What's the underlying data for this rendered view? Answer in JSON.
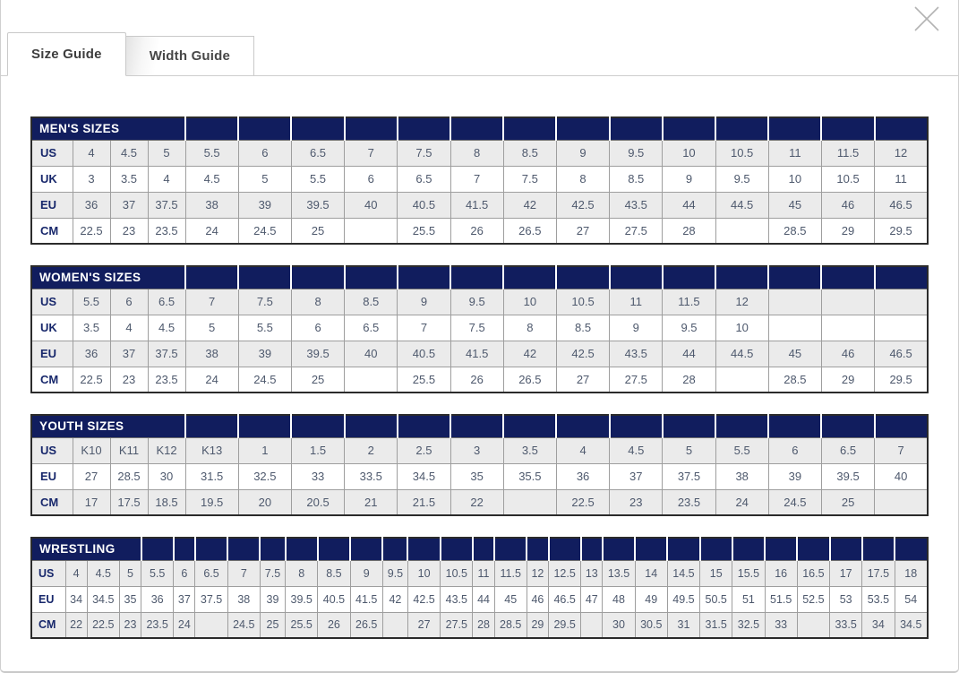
{
  "modal": {
    "close_icon": "close-x"
  },
  "tabs": [
    {
      "label": "Size Guide",
      "active": true
    },
    {
      "label": "Width Guide",
      "active": false
    }
  ],
  "colors": {
    "header_navy": "#111d5e",
    "row_alt": "#ebebeb",
    "label_text": "#17276b",
    "data_text": "#4e596d"
  },
  "tables": [
    {
      "title": "MEN'S SIZES",
      "rows": [
        {
          "label": "US",
          "values": [
            "4",
            "4.5",
            "5",
            "5.5",
            "6",
            "6.5",
            "7",
            "7.5",
            "8",
            "8.5",
            "9",
            "9.5",
            "10",
            "10.5",
            "11",
            "11.5",
            "12"
          ]
        },
        {
          "label": "UK",
          "values": [
            "3",
            "3.5",
            "4",
            "4.5",
            "5",
            "5.5",
            "6",
            "6.5",
            "7",
            "7.5",
            "8",
            "8.5",
            "9",
            "9.5",
            "10",
            "10.5",
            "11"
          ]
        },
        {
          "label": "EU",
          "values": [
            "36",
            "37",
            "37.5",
            "38",
            "39",
            "39.5",
            "40",
            "40.5",
            "41.5",
            "42",
            "42.5",
            "43.5",
            "44",
            "44.5",
            "45",
            "46",
            "46.5"
          ]
        },
        {
          "label": "CM",
          "values": [
            "22.5",
            "23",
            "23.5",
            "24",
            "24.5",
            "25",
            "",
            "25.5",
            "26",
            "26.5",
            "27",
            "27.5",
            "28",
            "",
            "28.5",
            "29",
            "29.5"
          ]
        }
      ]
    },
    {
      "title": "WOMEN'S SIZES",
      "rows": [
        {
          "label": "US",
          "values": [
            "5.5",
            "6",
            "6.5",
            "7",
            "7.5",
            "8",
            "8.5",
            "9",
            "9.5",
            "10",
            "10.5",
            "11",
            "11.5",
            "12",
            "",
            "",
            ""
          ]
        },
        {
          "label": "UK",
          "values": [
            "3.5",
            "4",
            "4.5",
            "5",
            "5.5",
            "6",
            "6.5",
            "7",
            "7.5",
            "8",
            "8.5",
            "9",
            "9.5",
            "10",
            "",
            "",
            ""
          ]
        },
        {
          "label": "EU",
          "values": [
            "36",
            "37",
            "37.5",
            "38",
            "39",
            "39.5",
            "40",
            "40.5",
            "41.5",
            "42",
            "42.5",
            "43.5",
            "44",
            "44.5",
            "45",
            "46",
            "46.5"
          ]
        },
        {
          "label": "CM",
          "values": [
            "22.5",
            "23",
            "23.5",
            "24",
            "24.5",
            "25",
            "",
            "25.5",
            "26",
            "26.5",
            "27",
            "27.5",
            "28",
            "",
            "28.5",
            "29",
            "29.5"
          ]
        }
      ]
    },
    {
      "title": "YOUTH SIZES",
      "rows": [
        {
          "label": "US",
          "values": [
            "K10",
            "K11",
            "K12",
            "K13",
            "1",
            "1.5",
            "2",
            "2.5",
            "3",
            "3.5",
            "4",
            "4.5",
            "5",
            "5.5",
            "6",
            "6.5",
            "7"
          ]
        },
        {
          "label": "EU",
          "values": [
            "27",
            "28.5",
            "30",
            "31.5",
            "32.5",
            "33",
            "33.5",
            "34.5",
            "35",
            "35.5",
            "36",
            "37",
            "37.5",
            "38",
            "39",
            "39.5",
            "40"
          ]
        },
        {
          "label": "CM",
          "values": [
            "17",
            "17.5",
            "18.5",
            "19.5",
            "20",
            "20.5",
            "21",
            "21.5",
            "22",
            "",
            "22.5",
            "23",
            "23.5",
            "24",
            "24.5",
            "25",
            ""
          ]
        }
      ]
    },
    {
      "title": "WRESTLING",
      "rows": [
        {
          "label": "US",
          "values": [
            "4",
            "4.5",
            "5",
            "5.5",
            "6",
            "6.5",
            "7",
            "7.5",
            "8",
            "8.5",
            "9",
            "9.5",
            "10",
            "10.5",
            "11",
            "11.5",
            "12",
            "12.5",
            "13",
            "13.5",
            "14",
            "14.5",
            "15",
            "15.5",
            "16",
            "16.5",
            "17",
            "17.5",
            "18"
          ]
        },
        {
          "label": "EU",
          "values": [
            "34",
            "34.5",
            "35",
            "36",
            "37",
            "37.5",
            "38",
            "39",
            "39.5",
            "40.5",
            "41.5",
            "42",
            "42.5",
            "43.5",
            "44",
            "45",
            "46",
            "46.5",
            "47",
            "48",
            "49",
            "49.5",
            "50.5",
            "51",
            "51.5",
            "52.5",
            "53",
            "53.5",
            "54"
          ]
        },
        {
          "label": "CM",
          "values": [
            "22",
            "22.5",
            "23",
            "23.5",
            "24",
            "",
            "24.5",
            "25",
            "25.5",
            "26",
            "26.5",
            "",
            "27",
            "27.5",
            "28",
            "28.5",
            "29",
            "29.5",
            "",
            "30",
            "30.5",
            "31",
            "31.5",
            "32.5",
            "33",
            "",
            "33.5",
            "34",
            "34.5"
          ]
        }
      ]
    }
  ]
}
